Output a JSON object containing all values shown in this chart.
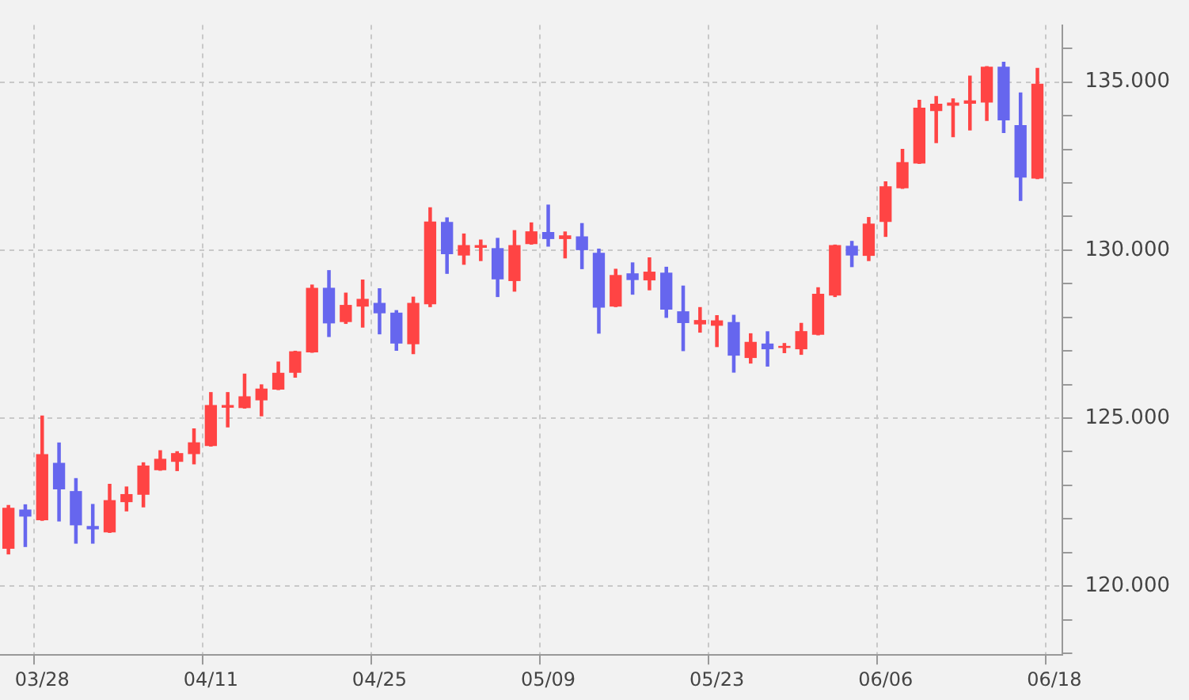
{
  "chart_data": {
    "type": "candlestick",
    "categories": [
      null,
      null,
      "03/28",
      null,
      null,
      null,
      null,
      null,
      null,
      null,
      null,
      null,
      "04/11",
      null,
      null,
      null,
      null,
      null,
      null,
      null,
      null,
      null,
      "04/25",
      null,
      null,
      null,
      null,
      null,
      null,
      null,
      null,
      null,
      "05/09",
      null,
      null,
      null,
      null,
      null,
      null,
      null,
      null,
      null,
      "05/23",
      null,
      null,
      null,
      null,
      null,
      null,
      null,
      null,
      null,
      "06/06",
      null,
      null,
      null,
      null,
      null,
      null,
      null,
      null,
      null,
      "06/18"
    ],
    "ohlc": [
      [
        121.11,
        122.4,
        120.96,
        122.33
      ],
      [
        122.28,
        122.42,
        121.18,
        122.07
      ],
      [
        121.96,
        125.06,
        121.96,
        123.93
      ],
      [
        123.67,
        124.26,
        121.94,
        122.88
      ],
      [
        122.83,
        123.2,
        121.28,
        121.81
      ],
      [
        121.79,
        122.43,
        121.28,
        121.69
      ],
      [
        121.6,
        123.03,
        121.6,
        122.56
      ],
      [
        122.5,
        122.95,
        122.24,
        122.74
      ],
      [
        122.72,
        123.67,
        122.36,
        123.59
      ],
      [
        123.45,
        124.03,
        123.45,
        123.79
      ],
      [
        123.7,
        124.0,
        123.44,
        123.96
      ],
      [
        123.93,
        124.68,
        123.64,
        124.28
      ],
      [
        124.17,
        125.76,
        124.17,
        125.39
      ],
      [
        125.31,
        125.76,
        124.74,
        125.39
      ],
      [
        125.3,
        126.31,
        125.3,
        125.65
      ],
      [
        125.53,
        125.99,
        125.07,
        125.88
      ],
      [
        125.85,
        126.67,
        125.85,
        126.35
      ],
      [
        126.35,
        126.99,
        126.22,
        126.99
      ],
      [
        126.96,
        128.96,
        126.96,
        128.88
      ],
      [
        128.88,
        129.39,
        127.43,
        127.82
      ],
      [
        127.86,
        128.72,
        127.82,
        128.37
      ],
      [
        128.32,
        129.11,
        127.71,
        128.55
      ],
      [
        128.43,
        128.85,
        127.51,
        128.12
      ],
      [
        128.14,
        128.2,
        127.02,
        127.22
      ],
      [
        127.2,
        128.6,
        126.92,
        128.43
      ],
      [
        128.39,
        131.26,
        128.32,
        130.85
      ],
      [
        130.84,
        130.96,
        129.31,
        129.88
      ],
      [
        129.84,
        130.48,
        129.58,
        130.15
      ],
      [
        130.07,
        130.3,
        129.69,
        130.15
      ],
      [
        130.06,
        130.35,
        128.62,
        129.13
      ],
      [
        129.08,
        130.58,
        128.78,
        130.15
      ],
      [
        130.18,
        130.81,
        130.18,
        130.56
      ],
      [
        130.54,
        131.34,
        130.12,
        130.33
      ],
      [
        130.33,
        130.54,
        129.77,
        130.44
      ],
      [
        130.41,
        130.79,
        129.45,
        130.0
      ],
      [
        129.92,
        130.03,
        127.53,
        128.29
      ],
      [
        128.32,
        129.43,
        128.32,
        129.26
      ],
      [
        129.31,
        129.62,
        128.69,
        129.11
      ],
      [
        129.1,
        129.77,
        128.82,
        129.36
      ],
      [
        129.33,
        129.49,
        128.0,
        128.23
      ],
      [
        128.18,
        128.93,
        127.01,
        127.83
      ],
      [
        127.79,
        128.29,
        127.56,
        127.92
      ],
      [
        127.75,
        128.05,
        127.13,
        127.91
      ],
      [
        127.86,
        128.06,
        126.37,
        126.86
      ],
      [
        126.79,
        127.51,
        126.64,
        127.27
      ],
      [
        127.22,
        127.57,
        126.55,
        127.05
      ],
      [
        127.09,
        127.22,
        126.95,
        127.15
      ],
      [
        127.05,
        127.82,
        126.9,
        127.59
      ],
      [
        127.48,
        128.88,
        127.48,
        128.7
      ],
      [
        128.65,
        130.15,
        128.62,
        130.15
      ],
      [
        130.13,
        130.26,
        129.51,
        129.84
      ],
      [
        129.83,
        130.97,
        129.69,
        130.79
      ],
      [
        130.84,
        132.03,
        130.41,
        131.9
      ],
      [
        131.84,
        133.0,
        131.84,
        132.62
      ],
      [
        132.58,
        134.46,
        132.58,
        134.24
      ],
      [
        134.14,
        134.57,
        133.2,
        134.36
      ],
      [
        134.3,
        134.5,
        133.38,
        134.39
      ],
      [
        134.36,
        135.18,
        133.58,
        134.46
      ],
      [
        134.39,
        135.46,
        133.86,
        135.46
      ],
      [
        135.46,
        135.59,
        133.5,
        133.86
      ],
      [
        133.72,
        134.68,
        131.48,
        132.16
      ],
      [
        132.13,
        135.41,
        132.13,
        134.95
      ],
      null
    ],
    "colors": [
      "#ff4444",
      "#6666ee",
      "#ff4444",
      "#6666ee",
      "#6666ee",
      "#6666ee",
      "#ff4444",
      "#ff4444",
      "#ff4444",
      "#ff4444",
      "#ff4444",
      "#ff4444",
      "#ff4444",
      "#ff4444",
      "#ff4444",
      "#ff4444",
      "#ff4444",
      "#ff4444",
      "#ff4444",
      "#6666ee",
      "#ff4444",
      "#ff4444",
      "#6666ee",
      "#6666ee",
      "#ff4444",
      "#ff4444",
      "#6666ee",
      "#ff4444",
      "#ff4444",
      "#6666ee",
      "#ff4444",
      "#ff4444",
      "#6666ee",
      "#ff4444",
      "#6666ee",
      "#6666ee",
      "#ff4444",
      "#6666ee",
      "#ff4444",
      "#6666ee",
      "#6666ee",
      "#ff4444",
      "#ff4444",
      "#6666ee",
      "#ff4444",
      "#6666ee",
      "#ff4444",
      "#ff4444",
      "#ff4444",
      "#ff4444",
      "#6666ee",
      "#ff4444",
      "#ff4444",
      "#ff4444",
      "#ff4444",
      "#ff4444",
      "#ff4444",
      "#ff4444",
      "#ff4444",
      "#6666ee",
      "#6666ee",
      "#ff4444",
      null
    ],
    "ylim": [
      117.95,
      136.7
    ],
    "yticks": [
      {
        "value": 118,
        "label": null
      },
      {
        "value": 119,
        "label": null
      },
      {
        "value": 120,
        "label": "120.000"
      },
      {
        "value": 121,
        "label": null
      },
      {
        "value": 122,
        "label": null
      },
      {
        "value": 123,
        "label": null
      },
      {
        "value": 124,
        "label": null
      },
      {
        "value": 125,
        "label": "125.000"
      },
      {
        "value": 126,
        "label": null
      },
      {
        "value": 127,
        "label": null
      },
      {
        "value": 128,
        "label": null
      },
      {
        "value": 129,
        "label": null
      },
      {
        "value": 130,
        "label": "130.000"
      },
      {
        "value": 131,
        "label": null
      },
      {
        "value": 132,
        "label": null
      },
      {
        "value": 133,
        "label": null
      },
      {
        "value": 134,
        "label": null
      },
      {
        "value": 135,
        "label": "135.000"
      },
      {
        "value": 136,
        "label": null
      }
    ],
    "grid": true,
    "legend": false
  }
}
